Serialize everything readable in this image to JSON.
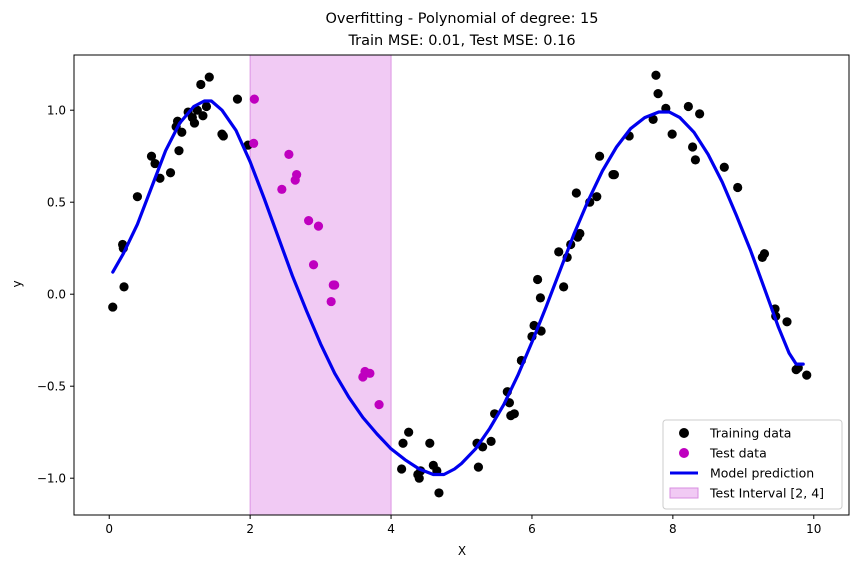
{
  "chart_data": {
    "type": "scatter",
    "title": "Overfitting - Polynomial of degree: 15",
    "subtitle": "Train MSE: 0.01, Test MSE: 0.16",
    "xlabel": "X",
    "ylabel": "y",
    "xlim": [
      -0.5,
      10.5
    ],
    "ylim": [
      -1.2,
      1.3
    ],
    "xticks": [
      0,
      2,
      4,
      6,
      8,
      10
    ],
    "xtick_labels": [
      "0",
      "2",
      "4",
      "6",
      "8",
      "10"
    ],
    "yticks": [
      -1.0,
      -0.5,
      0.0,
      0.5,
      1.0
    ],
    "ytick_labels": [
      "−1.0",
      "−0.5",
      "0.0",
      "0.5",
      "1.0"
    ],
    "grid": false,
    "legend_position": "bottom-right",
    "colors": {
      "training": "#000000",
      "test": "#bf00bf",
      "model": "#0000ee",
      "interval_fill": "#e8a6ec"
    },
    "test_interval": {
      "label": "Test Interval [2, 4]",
      "from": 2,
      "to": 4
    },
    "series": [
      {
        "name": "Training data",
        "kind": "scatter",
        "points": [
          [
            0.05,
            -0.07
          ],
          [
            0.19,
            0.27
          ],
          [
            0.2,
            0.25
          ],
          [
            0.21,
            0.04
          ],
          [
            0.4,
            0.53
          ],
          [
            0.6,
            0.75
          ],
          [
            0.65,
            0.71
          ],
          [
            0.72,
            0.63
          ],
          [
            0.87,
            0.66
          ],
          [
            0.95,
            0.91
          ],
          [
            0.97,
            0.94
          ],
          [
            0.99,
            0.78
          ],
          [
            1.03,
            0.88
          ],
          [
            1.12,
            0.99
          ],
          [
            1.18,
            0.96
          ],
          [
            1.21,
            0.93
          ],
          [
            1.25,
            1.0
          ],
          [
            1.3,
            1.14
          ],
          [
            1.33,
            0.97
          ],
          [
            1.38,
            1.02
          ],
          [
            1.42,
            1.18
          ],
          [
            1.6,
            0.87
          ],
          [
            1.62,
            0.86
          ],
          [
            1.82,
            1.06
          ],
          [
            1.97,
            0.81
          ],
          [
            4.15,
            -0.95
          ],
          [
            4.17,
            -0.81
          ],
          [
            4.25,
            -0.75
          ],
          [
            4.38,
            -0.98
          ],
          [
            4.4,
            -1.0
          ],
          [
            4.42,
            -0.96
          ],
          [
            4.55,
            -0.81
          ],
          [
            4.6,
            -0.93
          ],
          [
            4.65,
            -0.96
          ],
          [
            4.68,
            -1.08
          ],
          [
            5.22,
            -0.81
          ],
          [
            5.24,
            -0.94
          ],
          [
            5.3,
            -0.83
          ],
          [
            5.42,
            -0.8
          ],
          [
            5.47,
            -0.65
          ],
          [
            5.65,
            -0.53
          ],
          [
            5.68,
            -0.59
          ],
          [
            5.7,
            -0.66
          ],
          [
            5.75,
            -0.65
          ],
          [
            5.85,
            -0.36
          ],
          [
            6.0,
            -0.23
          ],
          [
            6.03,
            -0.17
          ],
          [
            6.08,
            0.08
          ],
          [
            6.12,
            -0.02
          ],
          [
            6.13,
            -0.2
          ],
          [
            6.38,
            0.23
          ],
          [
            6.45,
            0.04
          ],
          [
            6.5,
            0.2
          ],
          [
            6.55,
            0.27
          ],
          [
            6.63,
            0.55
          ],
          [
            6.65,
            0.31
          ],
          [
            6.68,
            0.33
          ],
          [
            6.82,
            0.5
          ],
          [
            6.92,
            0.53
          ],
          [
            6.96,
            0.75
          ],
          [
            7.15,
            0.65
          ],
          [
            7.17,
            0.65
          ],
          [
            7.38,
            0.86
          ],
          [
            7.72,
            0.95
          ],
          [
            7.76,
            1.19
          ],
          [
            7.79,
            1.09
          ],
          [
            7.9,
            1.01
          ],
          [
            7.99,
            0.87
          ],
          [
            8.22,
            1.02
          ],
          [
            8.28,
            0.8
          ],
          [
            8.32,
            0.73
          ],
          [
            8.38,
            0.98
          ],
          [
            8.73,
            0.69
          ],
          [
            8.92,
            0.58
          ],
          [
            9.27,
            0.2
          ],
          [
            9.3,
            0.22
          ],
          [
            9.45,
            -0.08
          ],
          [
            9.46,
            -0.12
          ],
          [
            9.62,
            -0.15
          ],
          [
            9.75,
            -0.41
          ],
          [
            9.78,
            -0.4
          ],
          [
            9.9,
            -0.44
          ]
        ]
      },
      {
        "name": "Test data",
        "kind": "scatter",
        "points": [
          [
            2.05,
            0.82
          ],
          [
            2.06,
            1.06
          ],
          [
            2.45,
            0.57
          ],
          [
            2.55,
            0.76
          ],
          [
            2.64,
            0.62
          ],
          [
            2.66,
            0.65
          ],
          [
            2.83,
            0.4
          ],
          [
            2.9,
            0.16
          ],
          [
            2.97,
            0.37
          ],
          [
            3.15,
            -0.04
          ],
          [
            3.18,
            0.05
          ],
          [
            3.2,
            0.05
          ],
          [
            3.6,
            -0.45
          ],
          [
            3.63,
            -0.42
          ],
          [
            3.7,
            -0.43
          ],
          [
            3.83,
            -0.6
          ]
        ]
      },
      {
        "name": "Model prediction",
        "kind": "line",
        "points": [
          [
            0.05,
            0.12
          ],
          [
            0.2,
            0.22
          ],
          [
            0.4,
            0.38
          ],
          [
            0.6,
            0.58
          ],
          [
            0.8,
            0.78
          ],
          [
            1.0,
            0.93
          ],
          [
            1.2,
            1.02
          ],
          [
            1.35,
            1.05
          ],
          [
            1.45,
            1.05
          ],
          [
            1.6,
            1.0
          ],
          [
            1.8,
            0.89
          ],
          [
            2.0,
            0.72
          ],
          [
            2.2,
            0.52
          ],
          [
            2.4,
            0.31
          ],
          [
            2.6,
            0.1
          ],
          [
            2.8,
            -0.09
          ],
          [
            3.0,
            -0.27
          ],
          [
            3.2,
            -0.43
          ],
          [
            3.4,
            -0.56
          ],
          [
            3.6,
            -0.67
          ],
          [
            3.8,
            -0.76
          ],
          [
            4.0,
            -0.84
          ],
          [
            4.2,
            -0.9
          ],
          [
            4.4,
            -0.95
          ],
          [
            4.6,
            -0.98
          ],
          [
            4.75,
            -0.98
          ],
          [
            4.9,
            -0.95
          ],
          [
            5.0,
            -0.92
          ],
          [
            5.2,
            -0.84
          ],
          [
            5.4,
            -0.73
          ],
          [
            5.6,
            -0.6
          ],
          [
            5.8,
            -0.44
          ],
          [
            6.0,
            -0.26
          ],
          [
            6.2,
            -0.07
          ],
          [
            6.4,
            0.13
          ],
          [
            6.6,
            0.33
          ],
          [
            6.8,
            0.51
          ],
          [
            7.0,
            0.67
          ],
          [
            7.2,
            0.8
          ],
          [
            7.4,
            0.9
          ],
          [
            7.6,
            0.96
          ],
          [
            7.8,
            0.99
          ],
          [
            7.95,
            0.99
          ],
          [
            8.1,
            0.96
          ],
          [
            8.3,
            0.88
          ],
          [
            8.5,
            0.76
          ],
          [
            8.7,
            0.61
          ],
          [
            8.9,
            0.43
          ],
          [
            9.1,
            0.24
          ],
          [
            9.3,
            0.03
          ],
          [
            9.5,
            -0.18
          ],
          [
            9.65,
            -0.32
          ],
          [
            9.75,
            -0.38
          ],
          [
            9.85,
            -0.38
          ]
        ]
      }
    ]
  }
}
